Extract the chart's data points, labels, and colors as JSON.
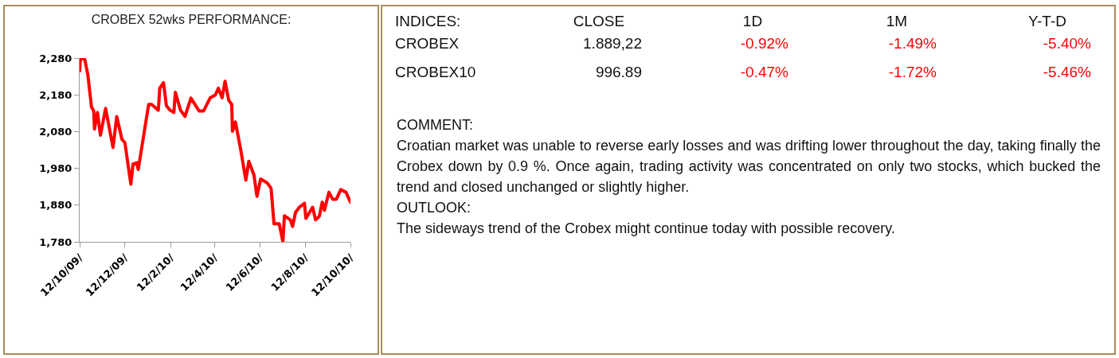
{
  "chart_data": [
    {
      "type": "line",
      "title": "CROBEX 52wks PERFORMANCE:",
      "color": "#ff0000",
      "grid": false,
      "legend": false,
      "marker": "none",
      "line_style": "solid",
      "x": [
        "2009-10-12",
        "2009-10-13",
        "2009-10-19",
        "2009-10-23",
        "2009-10-28",
        "2009-10-31",
        "2009-11-01",
        "2009-11-05",
        "2009-11-09",
        "2009-11-16",
        "2009-11-26",
        "2009-12-01",
        "2009-12-08",
        "2009-12-12",
        "2009-12-20",
        "2009-12-23",
        "2009-12-28",
        "2009-12-30",
        "2010-01-13",
        "2010-01-17",
        "2010-01-26",
        "2010-01-28",
        "2010-02-02",
        "2010-02-06",
        "2010-02-11",
        "2010-02-16",
        "2010-02-18",
        "2010-02-25",
        "2010-03-03",
        "2010-03-11",
        "2010-03-22",
        "2010-03-28",
        "2010-04-06",
        "2010-04-13",
        "2010-04-17",
        "2010-04-22",
        "2010-04-26",
        "2010-05-01",
        "2010-05-05",
        "2010-05-06",
        "2010-05-10",
        "2010-05-17",
        "2010-05-24",
        "2010-05-28",
        "2010-06-04",
        "2010-06-08",
        "2010-06-13",
        "2010-06-22",
        "2010-06-27",
        "2010-07-01",
        "2010-07-08",
        "2010-07-13",
        "2010-07-15",
        "2010-07-23",
        "2010-07-26",
        "2010-07-30",
        "2010-08-04",
        "2010-08-11",
        "2010-08-13",
        "2010-08-22",
        "2010-08-26",
        "2010-08-31",
        "2010-09-04",
        "2010-09-07",
        "2010-09-13",
        "2010-09-18",
        "2010-09-23",
        "2010-09-29",
        "2010-10-06",
        "2010-10-12"
      ],
      "values": [
        2245,
        2280,
        2276,
        2235,
        2147,
        2136,
        2087,
        2132,
        2070,
        2143,
        2037,
        2121,
        2059,
        2050,
        1937,
        1992,
        1995,
        1977,
        2154,
        2154,
        2138,
        2198,
        2213,
        2150,
        2138,
        2132,
        2187,
        2138,
        2121,
        2171,
        2136,
        2136,
        2172,
        2180,
        2198,
        2172,
        2217,
        2165,
        2154,
        2081,
        2106,
        2032,
        1948,
        1999,
        1962,
        1904,
        1951,
        1940,
        1926,
        1829,
        1829,
        1780,
        1851,
        1840,
        1822,
        1860,
        1874,
        1885,
        1844,
        1874,
        1840,
        1849,
        1888,
        1866,
        1915,
        1896,
        1896,
        1922,
        1915,
        1888
      ],
      "xlim": [
        "2009-10-12",
        "2010-10-12"
      ],
      "xticks": [
        {
          "value": "2009-10-12",
          "label": "12/10/09/"
        },
        {
          "value": "2009-12-12",
          "label": "12/12/09/"
        },
        {
          "value": "2010-02-12",
          "label": "12/2/10/"
        },
        {
          "value": "2010-04-12",
          "label": "12/4/10/"
        },
        {
          "value": "2010-06-12",
          "label": "12/6/10/"
        },
        {
          "value": "2010-08-12",
          "label": "12/8/10/"
        },
        {
          "value": "2010-10-12",
          "label": "12/10/10/"
        }
      ],
      "ylim": [
        1780,
        2280
      ],
      "yticks": [
        {
          "value": 1780,
          "label": "1,780"
        },
        {
          "value": 1880,
          "label": "1,880"
        },
        {
          "value": 1980,
          "label": "1,980"
        },
        {
          "value": 2080,
          "label": "2,080"
        },
        {
          "value": 2180,
          "label": "2,180"
        },
        {
          "value": 2280,
          "label": "2,280"
        }
      ]
    },
    {
      "type": "other",
      "color": "#ff0000",
      "annotations": [
        "INDICES:",
        "CLOSE",
        "1D",
        "1M",
        "Y-T-D",
        "CROBEX",
        "1.889,22",
        "-0.92%",
        "-1.49%",
        "-5.40%",
        "CROBEX10",
        "996.89",
        "-0.47%",
        "-1.72%",
        "-5.46%",
        "COMMENT:",
        "Croatian market was unable to reverse early losses and was drifting lower throughout the day, taking finally the Crobex down by 0.9 %. Once again, trading activity was concentrated on only two stocks, which bucked the trend and closed unchanged or slightly higher.",
        "OUTLOOK:",
        "The sideways trend of the Crobex might continue today with possible recovery."
      ]
    }
  ]
}
